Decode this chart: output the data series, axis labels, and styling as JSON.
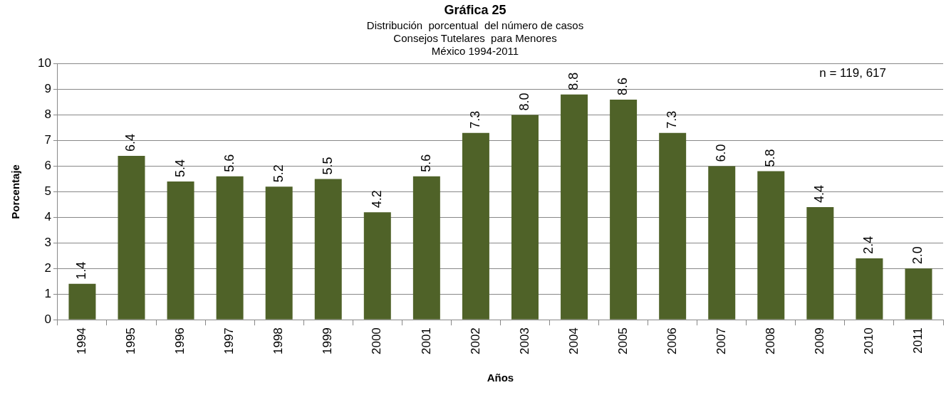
{
  "chart_data": {
    "type": "bar",
    "title": "Gráfica 25",
    "subtitle": "Distribución  porcentual  del número de casos\nConsejos Tutelares  para Menores\nMéxico 1994-2011",
    "xlabel": "Años",
    "ylabel": "Porcentaje",
    "categories": [
      "1994",
      "1995",
      "1996",
      "1997",
      "1998",
      "1999",
      "2000",
      "2001",
      "2002",
      "2003",
      "2004",
      "2005",
      "2006",
      "2007",
      "2008",
      "2009",
      "2010",
      "2011"
    ],
    "values": [
      1.4,
      6.4,
      5.4,
      5.6,
      5.2,
      5.5,
      4.2,
      5.6,
      7.3,
      8.0,
      8.8,
      8.6,
      7.3,
      6.0,
      5.8,
      4.4,
      2.4,
      2.0
    ],
    "value_labels": [
      "1.4",
      "6.4",
      "5.4",
      "5.6",
      "5.2",
      "5.5",
      "4.2",
      "5.6",
      "7.3",
      "8.0",
      "8.8",
      "8.6",
      "7.3",
      "6.0",
      "5.8",
      "4.4",
      "2.4",
      "2.0"
    ],
    "color": "#4f6228",
    "ylim": [
      0,
      10
    ],
    "yticks": [
      0,
      1,
      2,
      3,
      4,
      5,
      6,
      7,
      8,
      9,
      10
    ],
    "grid": "y",
    "legend": false,
    "annotations": [
      "n = 119, 617"
    ]
  }
}
